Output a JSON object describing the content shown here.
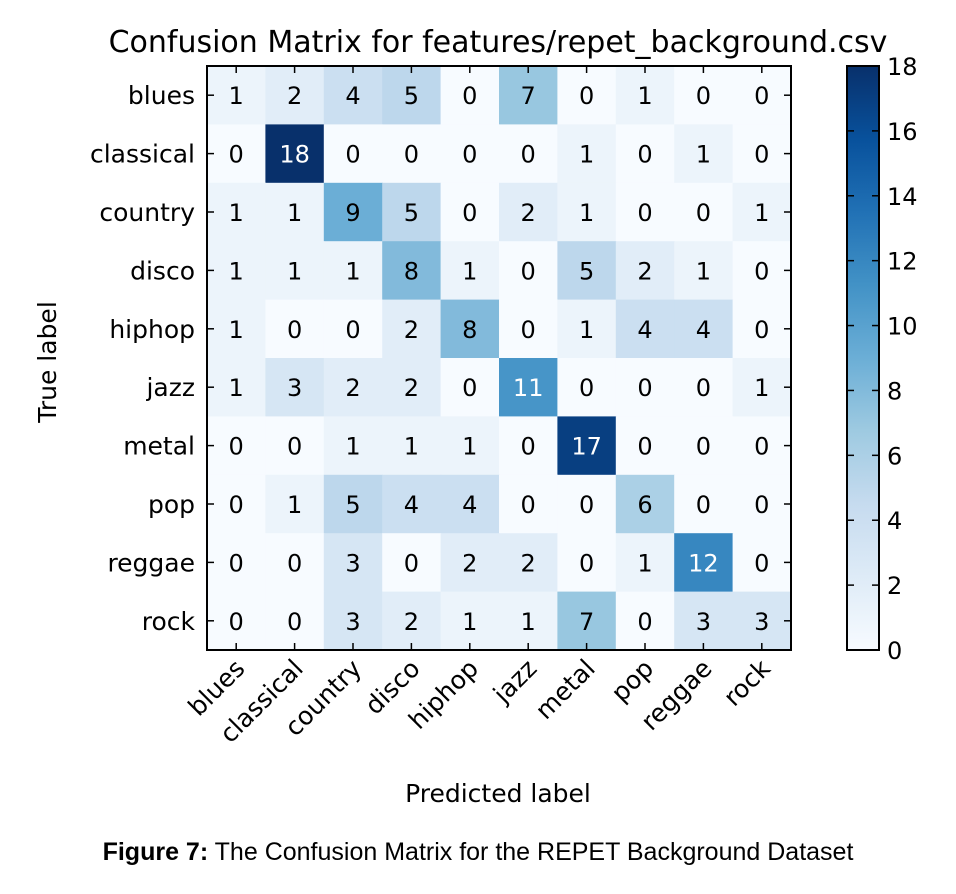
{
  "chart_data": {
    "type": "heatmap",
    "title": "Confusion Matrix for features/repet_background.csv",
    "xlabel": "Predicted label",
    "ylabel": "True label",
    "categories": [
      "blues",
      "classical",
      "country",
      "disco",
      "hiphop",
      "jazz",
      "metal",
      "pop",
      "reggae",
      "rock"
    ],
    "matrix": [
      [
        1,
        2,
        4,
        5,
        0,
        7,
        0,
        1,
        0,
        0
      ],
      [
        0,
        18,
        0,
        0,
        0,
        0,
        1,
        0,
        1,
        0
      ],
      [
        1,
        1,
        9,
        5,
        0,
        2,
        1,
        0,
        0,
        1
      ],
      [
        1,
        1,
        1,
        8,
        1,
        0,
        5,
        2,
        1,
        0
      ],
      [
        1,
        0,
        0,
        2,
        8,
        0,
        1,
        4,
        4,
        0
      ],
      [
        1,
        3,
        2,
        2,
        0,
        11,
        0,
        0,
        0,
        1
      ],
      [
        0,
        0,
        1,
        1,
        1,
        0,
        17,
        0,
        0,
        0
      ],
      [
        0,
        1,
        5,
        4,
        4,
        0,
        0,
        6,
        0,
        0
      ],
      [
        0,
        0,
        3,
        0,
        2,
        2,
        0,
        1,
        12,
        0
      ],
      [
        0,
        0,
        3,
        2,
        1,
        1,
        7,
        0,
        3,
        3
      ]
    ],
    "colorbar": {
      "min": 0,
      "max": 18,
      "ticks": [
        0,
        2,
        4,
        6,
        8,
        10,
        12,
        14,
        16,
        18
      ],
      "colormap": "Blues",
      "color_low": "#f7fbff",
      "color_high": "#08306b"
    }
  },
  "caption": {
    "label": "Figure 7:",
    "text": " The Confusion Matrix for the REPET Background Dataset"
  }
}
